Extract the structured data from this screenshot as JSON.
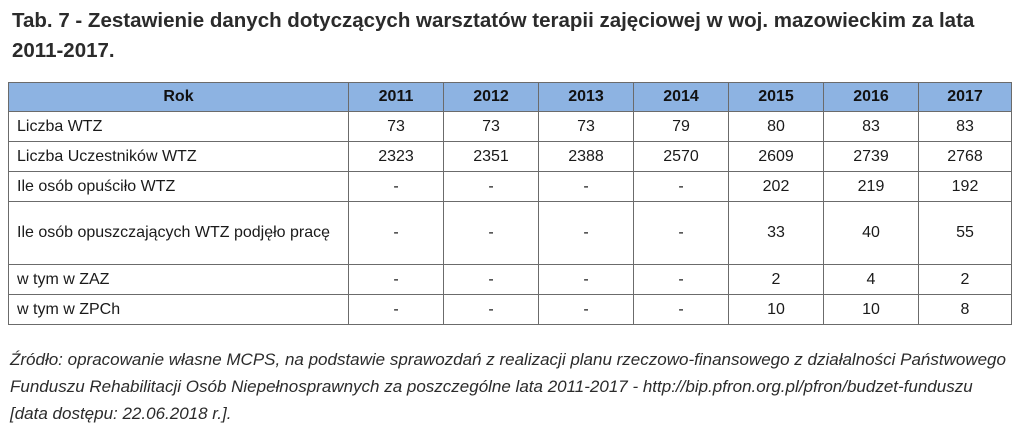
{
  "caption": "Tab. 7 - Zestawienie danych dotyczących warsztatów terapii zajęciowej w woj. mazowieckim za lata 2011-2017.",
  "table": {
    "header": [
      "Rok",
      "2011",
      "2012",
      "2013",
      "2014",
      "2015",
      "2016",
      "2017"
    ],
    "header_color": "#8db3e2",
    "rows": [
      {
        "label": "Liczba WTZ",
        "values": [
          "73",
          "73",
          "73",
          "79",
          "80",
          "83",
          "83"
        ]
      },
      {
        "label": "Liczba Uczestników WTZ",
        "values": [
          "2323",
          "2351",
          "2388",
          "2570",
          "2609",
          "2739",
          "2768"
        ]
      },
      {
        "label": "Ile osób opuściło WTZ",
        "values": [
          "-",
          "-",
          "-",
          "-",
          "202",
          "219",
          "192"
        ]
      },
      {
        "label": "Ile osób opuszczających WTZ podjęło pracę",
        "values": [
          "-",
          "-",
          "-",
          "-",
          "33",
          "40",
          "55"
        ]
      },
      {
        "label": "w tym w ZAZ",
        "values": [
          "-",
          "-",
          "-",
          "-",
          "2",
          "4",
          "2"
        ]
      },
      {
        "label": "w tym w ZPCh",
        "values": [
          "-",
          "-",
          "-",
          "-",
          "10",
          "10",
          "8"
        ]
      }
    ]
  },
  "source": "Źródło: opracowanie własne MCPS, na podstawie sprawozdań z realizacji planu rzeczowo-finansowego z działalności Państwowego Funduszu Rehabilitacji Osób Niepełnosprawnych za poszczególne lata 2011-2017 - http://bip.pfron.org.pl/pfron/budzet-funduszu [data dostępu: 22.06.2018 r.]."
}
